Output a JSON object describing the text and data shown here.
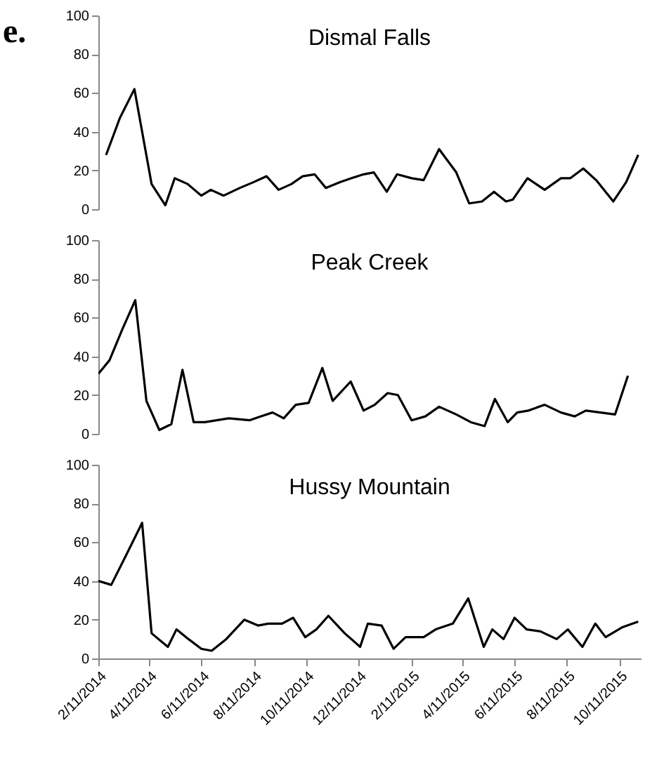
{
  "chart_data": [
    {
      "type": "line",
      "title": "Dismal Falls",
      "annotations": [
        "e."
      ],
      "tick_labels": "y",
      "xlim": [
        "2014-02-11",
        "2015-11-05"
      ],
      "ylim": [
        0,
        100
      ],
      "yticks": [
        0,
        20,
        40,
        60,
        80,
        100
      ],
      "grid": false,
      "line_style": "solid",
      "series": [
        {
          "color": "#000000",
          "x": [
            "2014-02-20",
            "2014-03-08",
            "2014-03-25",
            "2014-04-14",
            "2014-04-30",
            "2014-05-11",
            "2014-05-26",
            "2014-06-11",
            "2014-06-22",
            "2014-07-07",
            "2014-07-26",
            "2014-08-11",
            "2014-08-26",
            "2014-09-09",
            "2014-09-24",
            "2014-10-07",
            "2014-10-21",
            "2014-11-03",
            "2014-11-20",
            "2014-12-03",
            "2014-12-17",
            "2014-12-29",
            "2015-01-13",
            "2015-01-25",
            "2015-02-11",
            "2015-02-25",
            "2015-03-15",
            "2015-04-04",
            "2015-04-19",
            "2015-05-04",
            "2015-05-18",
            "2015-06-01",
            "2015-06-09",
            "2015-06-26",
            "2015-07-16",
            "2015-08-04",
            "2015-08-15",
            "2015-08-30",
            "2015-09-14",
            "2015-10-04",
            "2015-10-19",
            "2015-11-02"
          ],
          "values": [
            28,
            47,
            62,
            13,
            2,
            16,
            13,
            7,
            10,
            7,
            11,
            14,
            17,
            10,
            13,
            17,
            18,
            11,
            14,
            16,
            18,
            19,
            9,
            18,
            16,
            15,
            31,
            19,
            3,
            4,
            9,
            4,
            5,
            16,
            10,
            16,
            16,
            21,
            15,
            4,
            14,
            28
          ]
        }
      ]
    },
    {
      "type": "line",
      "title": "Peak Creek",
      "tick_labels": "y",
      "xlim": [
        "2014-02-11",
        "2015-11-05"
      ],
      "ylim": [
        0,
        100
      ],
      "yticks": [
        0,
        20,
        40,
        60,
        80,
        100
      ],
      "grid": false,
      "line_style": "solid",
      "series": [
        {
          "color": "#000000",
          "x": [
            "2014-02-11",
            "2014-02-24",
            "2014-03-11",
            "2014-03-26",
            "2014-04-08",
            "2014-04-23",
            "2014-05-07",
            "2014-05-20",
            "2014-06-02",
            "2014-06-15",
            "2014-06-29",
            "2014-07-13",
            "2014-08-06",
            "2014-08-19",
            "2014-09-02",
            "2014-09-15",
            "2014-09-29",
            "2014-10-14",
            "2014-10-30",
            "2014-11-11",
            "2014-12-02",
            "2014-12-17",
            "2014-12-30",
            "2015-01-14",
            "2015-01-26",
            "2015-02-11",
            "2015-02-27",
            "2015-03-15",
            "2015-04-04",
            "2015-04-21",
            "2015-05-07",
            "2015-05-19",
            "2015-06-03",
            "2015-06-14",
            "2015-06-27",
            "2015-07-16",
            "2015-08-04",
            "2015-08-20",
            "2015-09-02",
            "2015-09-19",
            "2015-10-06",
            "2015-10-21"
          ],
          "values": [
            31,
            38,
            54,
            69,
            17,
            2,
            5,
            33,
            6,
            6,
            7,
            8,
            7,
            9,
            11,
            8,
            15,
            16,
            34,
            17,
            27,
            12,
            15,
            21,
            20,
            7,
            9,
            14,
            10,
            6,
            4,
            18,
            6,
            11,
            12,
            15,
            11,
            9,
            12,
            11,
            10,
            30
          ]
        }
      ]
    },
    {
      "type": "line",
      "title": "Hussy Mountain",
      "xlim": [
        "2014-02-11",
        "2015-11-05"
      ],
      "ylim": [
        0,
        100
      ],
      "yticks": [
        0,
        20,
        40,
        60,
        80,
        100
      ],
      "grid": false,
      "line_style": "solid",
      "xticks": [
        {
          "value": "2014-02-11",
          "label": "2/11/2014"
        },
        {
          "value": "2014-04-11",
          "label": "4/11/2014"
        },
        {
          "value": "2014-06-11",
          "label": "6/11/2014"
        },
        {
          "value": "2014-08-11",
          "label": "8/11/2014"
        },
        {
          "value": "2014-10-11",
          "label": "10/11/2014"
        },
        {
          "value": "2014-12-11",
          "label": "12/11/2014"
        },
        {
          "value": "2015-02-11",
          "label": "2/11/2015"
        },
        {
          "value": "2015-04-11",
          "label": "4/11/2015"
        },
        {
          "value": "2015-06-11",
          "label": "6/11/2015"
        },
        {
          "value": "2015-08-11",
          "label": "8/11/2015"
        },
        {
          "value": "2015-10-11",
          "label": "10/11/2015"
        }
      ],
      "series": [
        {
          "color": "#000000",
          "x": [
            "2014-02-11",
            "2014-02-26",
            "2014-03-15",
            "2014-04-03",
            "2014-04-14",
            "2014-05-03",
            "2014-05-13",
            "2014-05-27",
            "2014-06-11",
            "2014-06-23",
            "2014-07-10",
            "2014-07-31",
            "2014-08-16",
            "2014-08-28",
            "2014-09-13",
            "2014-09-26",
            "2014-10-10",
            "2014-10-23",
            "2014-11-06",
            "2014-11-25",
            "2014-12-13",
            "2014-12-22",
            "2015-01-07",
            "2015-01-21",
            "2015-02-04",
            "2015-02-25",
            "2015-03-11",
            "2015-03-31",
            "2015-04-18",
            "2015-05-06",
            "2015-05-16",
            "2015-05-29",
            "2015-06-11",
            "2015-06-25",
            "2015-07-11",
            "2015-07-30",
            "2015-08-12",
            "2015-08-29",
            "2015-09-13",
            "2015-09-25",
            "2015-10-14",
            "2015-11-02"
          ],
          "values": [
            40,
            38,
            53,
            70,
            13,
            6,
            15,
            10,
            5,
            4,
            10,
            20,
            17,
            18,
            18,
            21,
            11,
            15,
            22,
            13,
            6,
            18,
            17,
            5,
            11,
            11,
            15,
            18,
            31,
            6,
            15,
            10,
            21,
            15,
            14,
            10,
            15,
            6,
            18,
            11,
            16,
            19
          ]
        }
      ]
    }
  ]
}
